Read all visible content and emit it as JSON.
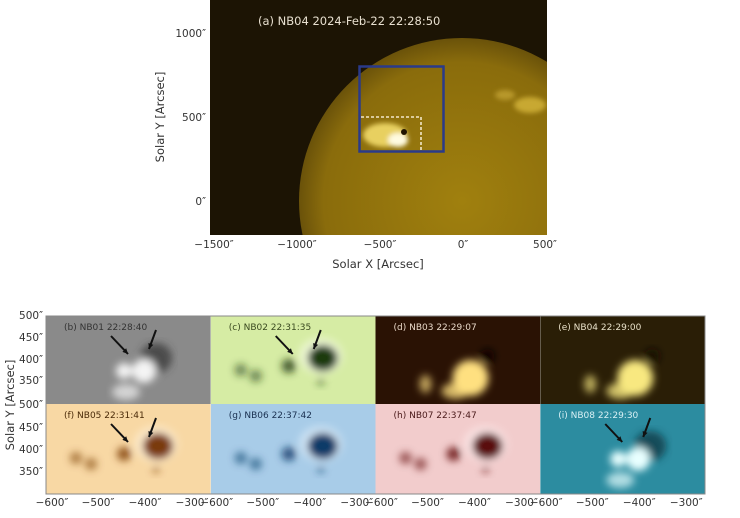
{
  "top_panel": {
    "label": "(a) NB04 2024-Feb-22 22:28:50",
    "xlabel": "Solar X [Arcsec]",
    "ylabel": "Solar Y [Arcsec]",
    "xticks": [
      "−1500″",
      "−1000″",
      "−500″",
      "0″",
      "500″"
    ],
    "yticks": [
      "1000″",
      "500″",
      "0″"
    ],
    "box_color": "#2a3a8a",
    "dashed_box_color": "#f2e6c8"
  },
  "grid": {
    "ylabel": "Solar Y [Arcsec]",
    "yticks": [
      "500″",
      "450″",
      "400″",
      "350″"
    ],
    "xticks": [
      "−600″",
      "−500″",
      "−400″",
      "−300″"
    ],
    "panels": [
      {
        "label": "(b) NB01 22:28:40",
        "bg": "#8a8a8a",
        "spot": "#3c3c3c",
        "bright": "#f4f4f4",
        "text": "#333333",
        "arrows": true,
        "mode": "bright"
      },
      {
        "label": "(c) NB02 22:31:35",
        "bg": "#d6eca4",
        "spot": "#1e3a10",
        "bright": "#fbfff0",
        "text": "#3a4a20",
        "arrows": true,
        "mode": "spot"
      },
      {
        "label": "(d) NB03 22:29:07",
        "bg": "#2a1204",
        "spot": "#100400",
        "bright": "#ffe080",
        "text": "#e8d8c8",
        "arrows": false,
        "mode": "flare"
      },
      {
        "label": "(e) NB04 22:29:00",
        "bg": "#2a1e06",
        "spot": "#120c00",
        "bright": "#f8e880",
        "text": "#e8e0c8",
        "arrows": false,
        "mode": "flare"
      },
      {
        "label": "(f) NB05 22:31:41",
        "bg": "#f8d8a4",
        "spot": "#7a3a08",
        "bright": "#fff4e0",
        "text": "#4a2a08",
        "arrows": true,
        "mode": "spot"
      },
      {
        "label": "(g) NB06 22:37:42",
        "bg": "#a8cce8",
        "spot": "#0a3a68",
        "bright": "#e4f2fc",
        "text": "#1a3050",
        "arrows": false,
        "mode": "spot"
      },
      {
        "label": "(h) NB07 22:37:47",
        "bg": "#f2cccc",
        "spot": "#5a0808",
        "bright": "#fff0f0",
        "text": "#4a1a1a",
        "arrows": false,
        "mode": "spot"
      },
      {
        "label": "(i) NB08 22:29:30",
        "bg": "#2c8ca0",
        "spot": "#103c48",
        "bright": "#e8ffff",
        "text": "#d8f0f4",
        "arrows": true,
        "mode": "bright"
      }
    ]
  }
}
